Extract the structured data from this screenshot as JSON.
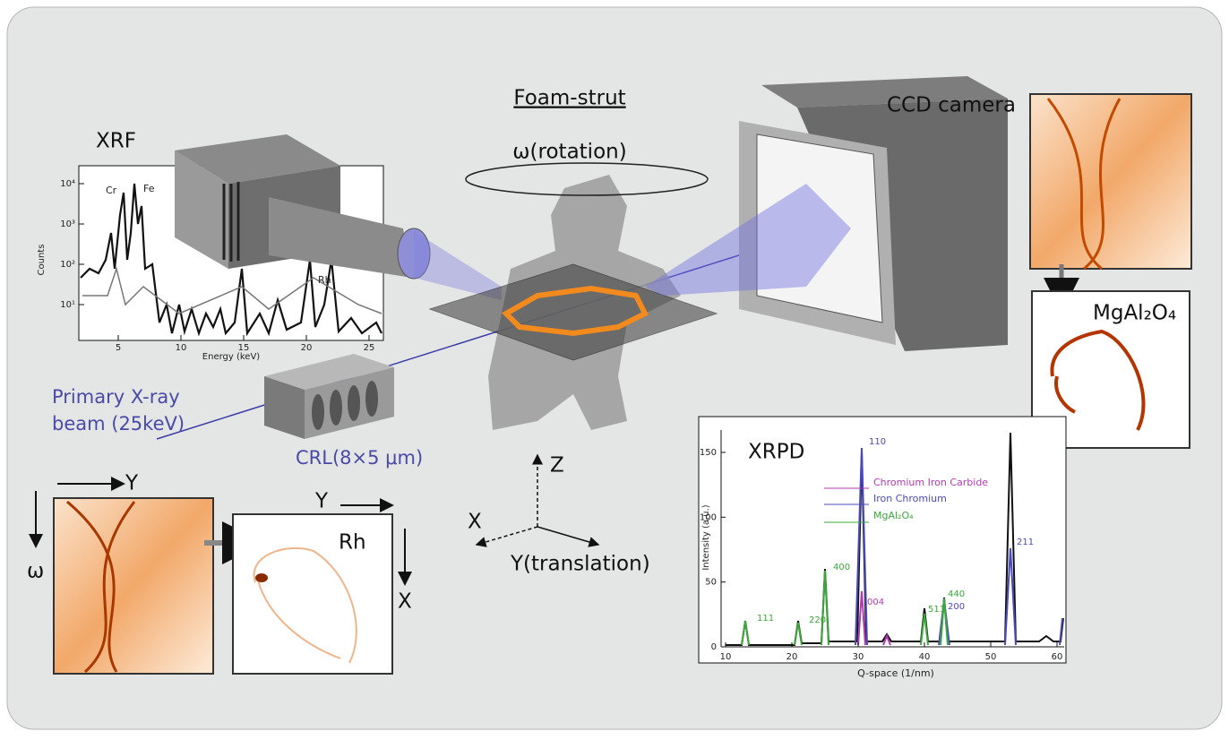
{
  "labels": {
    "xrf": "XRF",
    "foam_strut": "Foam-strut",
    "rotation": "ω(rotation)",
    "ccd_camera": "CCD camera",
    "mgal2o4": "MgAl₂O₄",
    "beam": [
      "Primary X-ray",
      "beam (25keV)"
    ],
    "crl": "CRL(8×5 μm)",
    "rh": "Rh",
    "xrpd": "XRPD"
  },
  "axes_triad": {
    "z": "Z",
    "x": "X",
    "y": "Y(translation)"
  },
  "sinogram": {
    "y": "Y",
    "omega": "ω"
  },
  "rh_map": {
    "y": "Y",
    "x": "X"
  },
  "xrf_plot": {
    "y_axis_label": "Counts",
    "x_axis_label": "Energy (keV)",
    "yticks": [
      "10⁴",
      "10³",
      "10²",
      "10¹"
    ],
    "xticks": [
      5,
      10,
      15,
      20,
      25
    ],
    "peaks": [
      "Cr",
      "Fe",
      "Rh"
    ]
  },
  "xrpd_plot": {
    "y_axis_label": "Intensity (a.u.)",
    "x_axis_label": "Q-space (1/nm)",
    "yticks": [
      150,
      100,
      50,
      0
    ],
    "xticks": [
      10,
      20,
      30,
      40,
      50,
      60
    ],
    "legend": [
      "Chromium Iron Carbide",
      "Iron Chromium",
      "MgAl₂O₄"
    ],
    "peaks": [
      "111",
      "220",
      "400",
      "110",
      "004",
      "511",
      "440",
      "200",
      "211"
    ]
  }
}
